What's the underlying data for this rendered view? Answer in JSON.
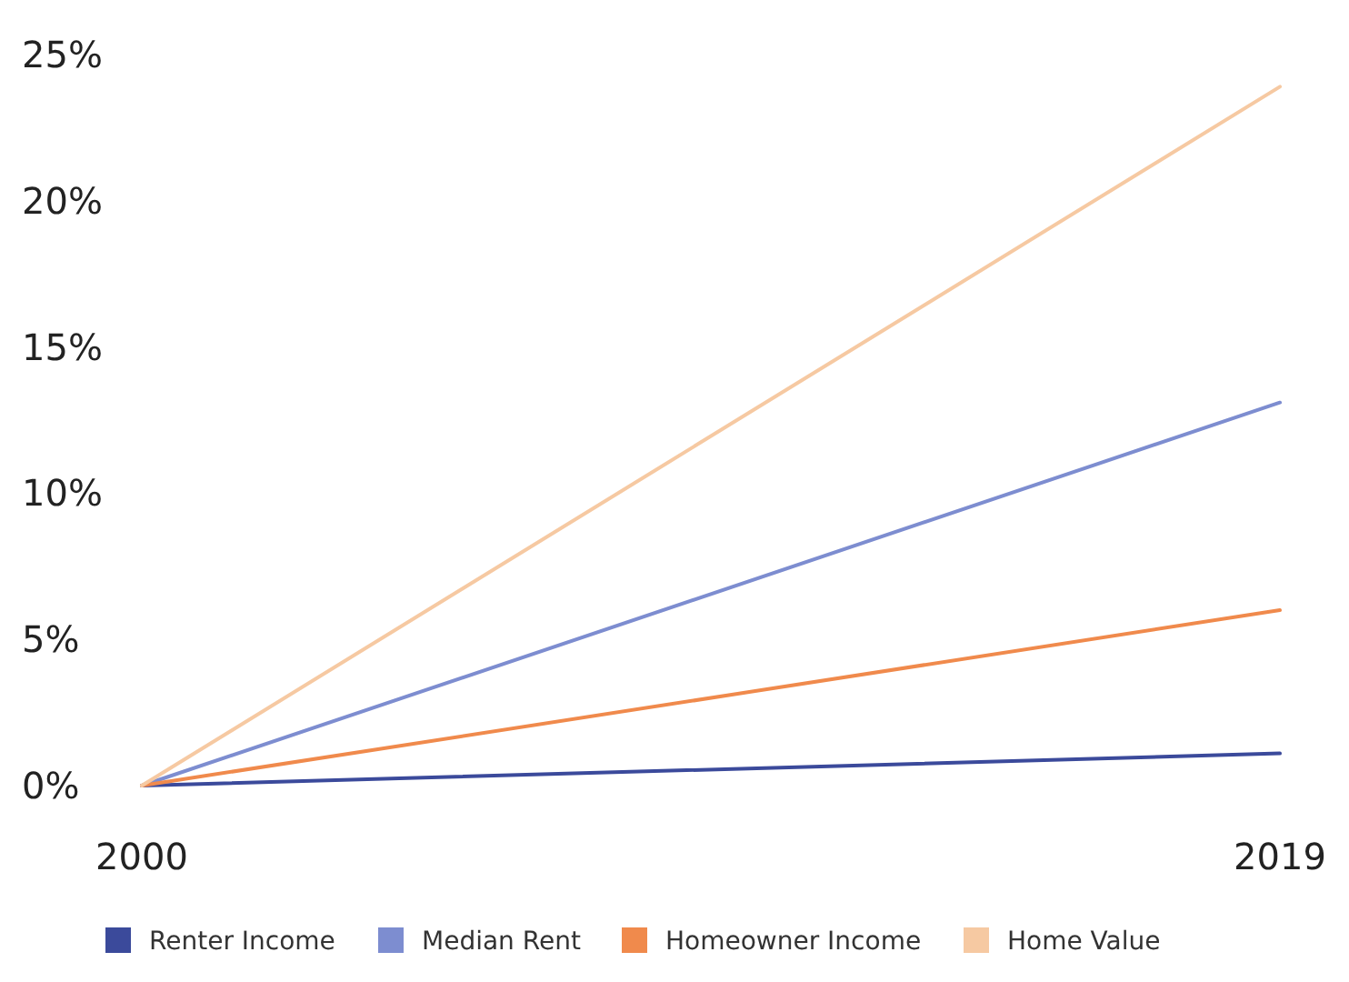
{
  "chart_data": {
    "type": "line",
    "x": [
      2000,
      2019
    ],
    "xlim": [
      2000,
      2019
    ],
    "xticks": [
      2000,
      2019
    ],
    "ylim": [
      0,
      25
    ],
    "yticks": [
      {
        "value": 0,
        "label": "0%"
      },
      {
        "value": 5,
        "label": "5%"
      },
      {
        "value": 10,
        "label": "10%"
      },
      {
        "value": 15,
        "label": "15%"
      },
      {
        "value": 20,
        "label": "20%"
      },
      {
        "value": 25,
        "label": "25%"
      }
    ],
    "grid": false,
    "legend": "bottom",
    "marker": "none",
    "line_style": "solid",
    "series": [
      {
        "name": "Renter Income",
        "color": "#3b4a9b",
        "values": [
          0,
          1.1
        ]
      },
      {
        "name": "Median Rent",
        "color": "#7d8dd0",
        "values": [
          0,
          13.1
        ]
      },
      {
        "name": "Homeowner Income",
        "color": "#f08a4c",
        "values": [
          0,
          6
        ]
      },
      {
        "name": "Home Value",
        "color": "#f6c9a2",
        "values": [
          0,
          23.9
        ]
      }
    ]
  }
}
